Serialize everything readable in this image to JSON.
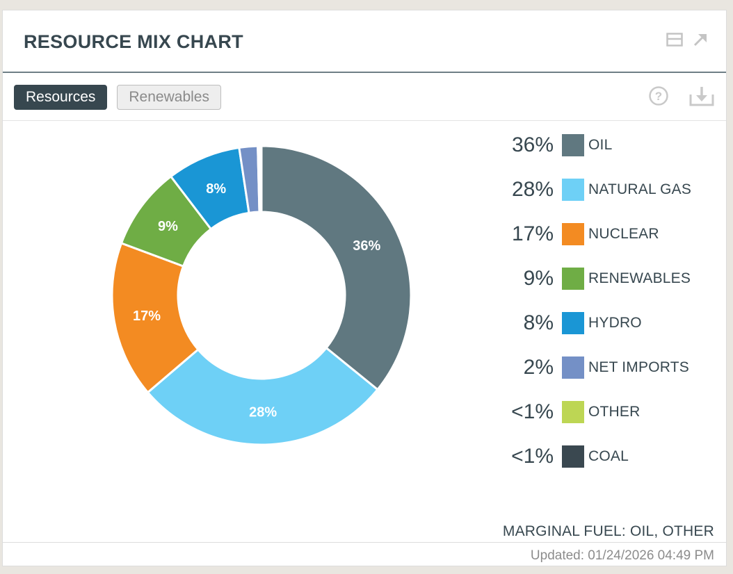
{
  "header": {
    "title": "RESOURCE MIX CHART",
    "icons": [
      "minimize-icon",
      "expand-icon"
    ]
  },
  "tabs": [
    {
      "label": "Resources",
      "active": true
    },
    {
      "label": "Renewables",
      "active": false
    }
  ],
  "toolbar": {
    "icons": [
      "help-icon",
      "download-icon"
    ]
  },
  "chart_data": {
    "type": "pie",
    "style": "donut",
    "categories": [
      "OIL",
      "NATURAL GAS",
      "NUCLEAR",
      "RENEWABLES",
      "HYDRO",
      "NET IMPORTS",
      "OTHER",
      "COAL"
    ],
    "values": [
      36,
      28,
      17,
      9,
      8,
      2,
      0.2,
      0.2
    ],
    "value_labels": [
      "36%",
      "28%",
      "17%",
      "9%",
      "8%",
      "2%",
      "<1%",
      "<1%"
    ],
    "slice_labels": [
      "36%",
      "28%",
      "17%",
      "9%",
      "8%",
      "",
      "",
      ""
    ],
    "colors": [
      "#607880",
      "#6ed0f6",
      "#f38b22",
      "#6fad45",
      "#1a96d5",
      "#7490c6",
      "#bdd654",
      "#3a4850"
    ],
    "legend_position": "right"
  },
  "footer": {
    "marginal_fuel": "MARGINAL FUEL: OIL, OTHER",
    "updated": "Updated: 01/24/2026 04:49 PM"
  }
}
